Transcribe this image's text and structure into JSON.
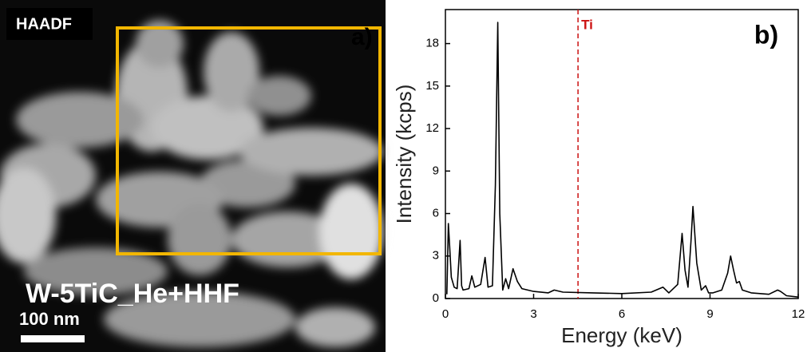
{
  "image_panel": {
    "label": "HAADF",
    "panel_letter": "a)",
    "sample": "W-5TiC_He+HHF",
    "scale_bar": "100 nm"
  },
  "chart_data": {
    "type": "line",
    "panel_letter": "b)",
    "x_label": "Energy (keV)",
    "y_label": "Intensity (kcps)",
    "x": [
      0.05,
      0.1,
      0.15,
      0.2,
      0.3,
      0.4,
      0.5,
      0.55,
      0.6,
      0.8,
      0.9,
      1.0,
      1.2,
      1.35,
      1.45,
      1.6,
      1.7,
      1.78,
      1.85,
      1.95,
      2.05,
      2.15,
      2.3,
      2.45,
      2.6,
      3.0,
      3.5,
      3.7,
      4.0,
      5.0,
      6.0,
      7.0,
      7.4,
      7.6,
      7.9,
      8.05,
      8.15,
      8.25,
      8.35,
      8.42,
      8.55,
      8.7,
      8.85,
      8.95,
      9.1,
      9.4,
      9.6,
      9.7,
      9.8,
      9.9,
      10.0,
      10.1,
      10.4,
      11.0,
      11.3,
      11.4,
      11.6,
      12.0
    ],
    "values": [
      0.3,
      5.3,
      3.5,
      1.5,
      0.8,
      0.7,
      4.1,
      0.9,
      0.6,
      0.7,
      1.6,
      0.8,
      1.0,
      2.9,
      0.8,
      0.9,
      8.0,
      19.5,
      6.0,
      0.6,
      1.4,
      0.7,
      2.1,
      1.2,
      0.7,
      0.5,
      0.4,
      0.6,
      0.45,
      0.4,
      0.35,
      0.45,
      0.8,
      0.4,
      1.0,
      4.6,
      2.0,
      0.8,
      4.0,
      6.5,
      2.5,
      0.6,
      0.9,
      0.4,
      0.4,
      0.6,
      1.8,
      3.0,
      2.0,
      1.1,
      1.2,
      0.6,
      0.4,
      0.3,
      0.6,
      0.5,
      0.2,
      0.1
    ],
    "color": "#000000",
    "xlim": [
      0,
      12
    ],
    "ylim": [
      0,
      20.4
    ],
    "xticks": [
      0,
      3,
      6,
      9,
      12
    ],
    "yticks": [
      0,
      3,
      6,
      9,
      12,
      15,
      18
    ],
    "marker_line": {
      "value": 4.51,
      "label": "Ti",
      "color": "#cc1111"
    }
  }
}
